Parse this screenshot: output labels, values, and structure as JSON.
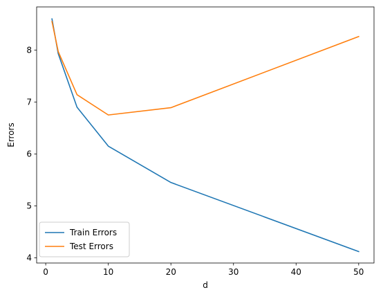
{
  "chart_data": {
    "type": "line",
    "title": "",
    "xlabel": "d",
    "ylabel": "Errors",
    "xlim": [
      -1.45,
      52.45
    ],
    "ylim": [
      3.9,
      8.83
    ],
    "xticks": [
      0,
      10,
      20,
      30,
      40,
      50
    ],
    "yticks": [
      4,
      5,
      6,
      7,
      8
    ],
    "grid": false,
    "legend_position": "lower-left",
    "series": [
      {
        "name": "Train Errors",
        "color": "#1f77b4",
        "x": [
          1,
          2,
          5,
          10,
          20,
          50
        ],
        "y": [
          8.6,
          7.93,
          6.9,
          6.15,
          5.45,
          4.12
        ]
      },
      {
        "name": "Test Errors",
        "color": "#ff7f0e",
        "x": [
          1,
          2,
          5,
          10,
          20,
          50
        ],
        "y": [
          8.55,
          7.97,
          7.14,
          6.75,
          6.89,
          8.26
        ]
      }
    ]
  }
}
